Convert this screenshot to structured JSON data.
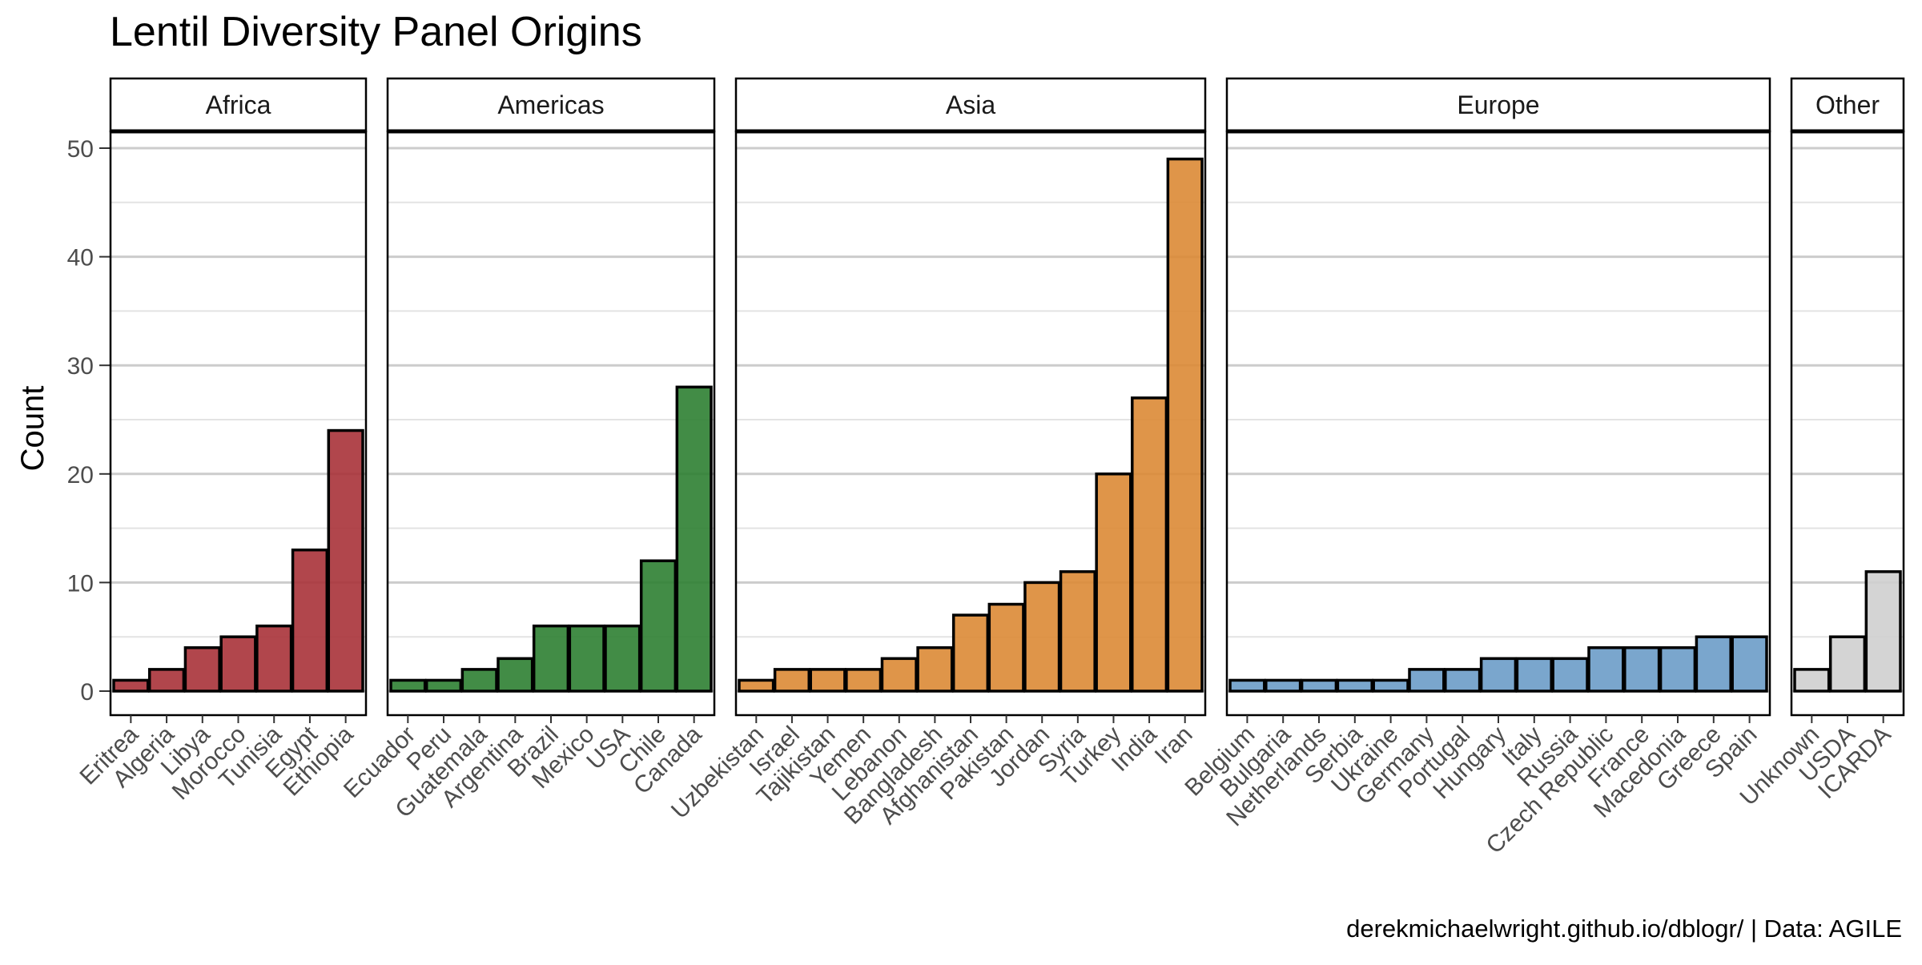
{
  "chart_data": {
    "type": "bar",
    "title": "Lentil Diversity Panel Origins",
    "ylabel": "Count",
    "xlabel": "",
    "caption": "derekmichaelwright.github.io/dblogr/ | Data: AGILE",
    "ylim": [
      0,
      50
    ],
    "yticks": [
      0,
      10,
      20,
      30,
      40,
      50
    ],
    "grid": true,
    "facets": [
      {
        "name": "Africa",
        "color": "#a83238",
        "categories": [
          "Eritrea",
          "Algeria",
          "Libya",
          "Morocco",
          "Tunisia",
          "Egypt",
          "Ethiopia"
        ],
        "values": [
          1,
          2,
          4,
          5,
          6,
          13,
          24
        ]
      },
      {
        "name": "Americas",
        "color": "#2e7f32",
        "categories": [
          "Ecuador",
          "Peru",
          "Guatemala",
          "Argentina",
          "Brazil",
          "Mexico",
          "USA",
          "Chile",
          "Canada"
        ],
        "values": [
          1,
          1,
          2,
          3,
          6,
          6,
          6,
          12,
          28
        ]
      },
      {
        "name": "Asia",
        "color": "#dc8a35",
        "categories": [
          "Uzbekistan",
          "Israel",
          "Tajikistan",
          "Yemen",
          "Lebanon",
          "Bangladesh",
          "Afghanistan",
          "Pakistan",
          "Jordan",
          "Syria",
          "Turkey",
          "India",
          "Iran"
        ],
        "values": [
          1,
          2,
          2,
          2,
          3,
          4,
          7,
          8,
          10,
          11,
          20,
          27,
          49
        ]
      },
      {
        "name": "Europe",
        "color": "#6c9cc8",
        "categories": [
          "Belgium",
          "Bulgaria",
          "Netherlands",
          "Serbia",
          "Ukraine",
          "Germany",
          "Portugal",
          "Hungary",
          "Italy",
          "Russia",
          "Czech Republic",
          "France",
          "Macedonia",
          "Greece",
          "Spain"
        ],
        "values": [
          1,
          1,
          1,
          1,
          1,
          2,
          2,
          3,
          3,
          3,
          4,
          4,
          4,
          5,
          5
        ]
      },
      {
        "name": "Other",
        "color": "#cfcfcf",
        "categories": [
          "Unknown",
          "USDA",
          "ICARDA"
        ],
        "values": [
          2,
          5,
          11
        ]
      }
    ]
  }
}
